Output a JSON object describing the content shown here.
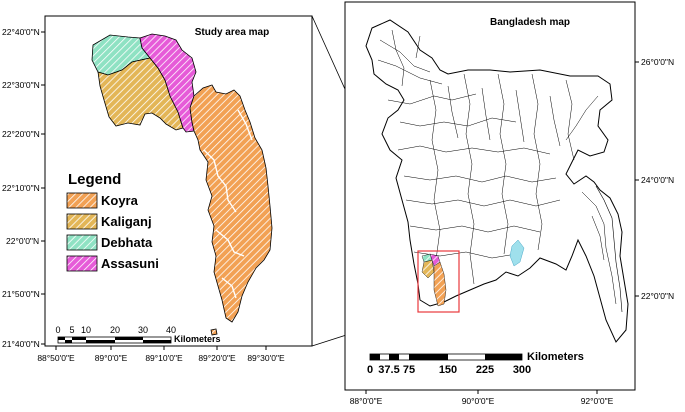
{
  "colors": {
    "koyra": "#f2a154",
    "kaliganj": "#e3b657",
    "debhata": "#8fe2c3",
    "assasuni": "#e65bd8",
    "highlight_box": "#e8383c",
    "border": "#000000",
    "background": "#ffffff"
  },
  "study_map": {
    "title": "Study area map",
    "lat_labels": [
      "22°40'0\"N",
      "22°30'0\"N",
      "22°20'0\"N",
      "22°10'0\"N",
      "22°0'0\"N",
      "21°50'0\"N",
      "21°40'0\"N"
    ],
    "lon_labels": [
      "88°50'0\"E",
      "89°0'0\"E",
      "89°10'0\"E",
      "89°20'0\"E",
      "89°30'0\"E"
    ],
    "legend": {
      "title": "Legend",
      "items": [
        {
          "label": "Koyra",
          "color": "#f2a154"
        },
        {
          "label": "Kaliganj",
          "color": "#e3b657"
        },
        {
          "label": "Debhata",
          "color": "#8fe2c3"
        },
        {
          "label": "Assasuni",
          "color": "#e65bd8"
        }
      ]
    },
    "scale_bar": {
      "ticks": [
        "0",
        "5",
        "10",
        "20",
        "30",
        "40"
      ],
      "unit": "Kilometers"
    }
  },
  "bangladesh_map": {
    "title": "Bangladesh map",
    "lat_labels": [
      "26°0'0\"N",
      "24°0'0\"N",
      "22°0'0\"N"
    ],
    "lon_labels": [
      "88°0'0\"E",
      "90°0'0\"E",
      "92°0'0\"E"
    ],
    "scale_bar": {
      "ticks": [
        "0",
        "37.5",
        "75",
        "150",
        "225",
        "300"
      ],
      "unit": "Kilometers"
    }
  }
}
